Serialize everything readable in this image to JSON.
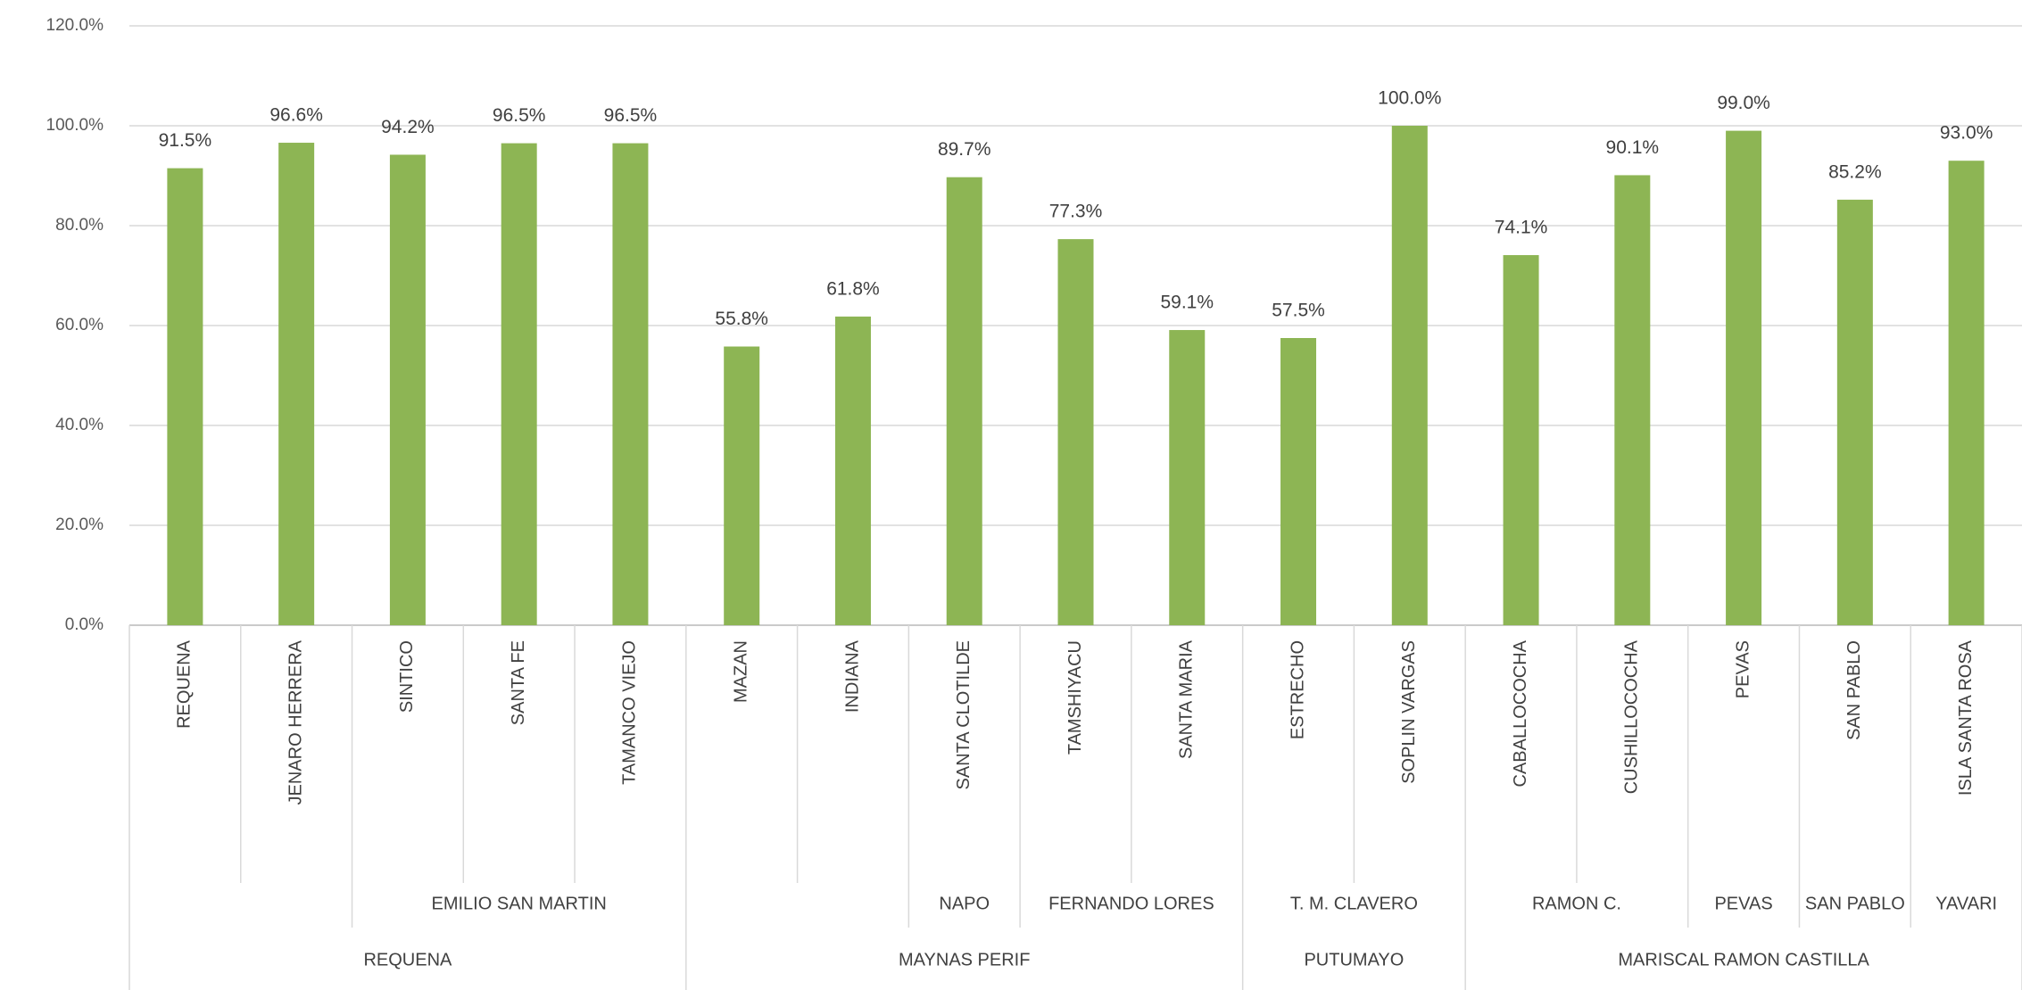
{
  "chart_data": {
    "type": "bar",
    "categories": [
      "REQUENA",
      "JENARO HERRERA",
      "SINTICO",
      "SANTA FE",
      "TAMANCO VIEJO",
      "MAZAN",
      "INDIANA",
      "SANTA CLOTILDE",
      "TAMSHIYACU",
      "SANTA MARIA",
      "ESTRECHO",
      "SOPLIN VARGAS",
      "CABALLOCOCHA",
      "CUSHILLOCOCHA",
      "PEVAS",
      "SAN PABLO",
      "ISLA SANTA ROSA"
    ],
    "values": [
      91.5,
      96.6,
      94.2,
      96.5,
      96.5,
      55.8,
      61.8,
      89.7,
      77.3,
      59.1,
      57.5,
      100.0,
      74.1,
      90.1,
      99.0,
      85.2,
      93.0
    ],
    "value_labels": [
      "91.5%",
      "96.6%",
      "94.2%",
      "96.5%",
      "96.5%",
      "55.8%",
      "61.8%",
      "89.7%",
      "77.3%",
      "59.1%",
      "57.5%",
      "100.0%",
      "74.1%",
      "90.1%",
      "99.0%",
      "85.2%",
      "93.0%"
    ],
    "color": "#8db554",
    "ylim": [
      0,
      120
    ],
    "yticks": [
      {
        "value": 0,
        "label": "0.0%"
      },
      {
        "value": 20,
        "label": "20.0%"
      },
      {
        "value": 40,
        "label": "40.0%"
      },
      {
        "value": 60,
        "label": "60.0%"
      },
      {
        "value": 80,
        "label": "80.0%"
      },
      {
        "value": 100,
        "label": "100.0%"
      },
      {
        "value": 120,
        "label": "120.0%"
      }
    ],
    "grid": true,
    "group_levels": [
      [
        {
          "label": null,
          "span": 2
        },
        {
          "label": "EMILIO SAN MARTIN",
          "span": 3
        },
        {
          "label": null,
          "span": 2
        },
        {
          "label": "NAPO",
          "span": 1
        },
        {
          "label": "FERNANDO LORES",
          "span": 2
        },
        {
          "label": "T. M. CLAVERO",
          "span": 2
        },
        {
          "label": "RAMON C.",
          "span": 2
        },
        {
          "label": "PEVAS",
          "span": 1
        },
        {
          "label": "SAN PABLO",
          "span": 1
        },
        {
          "label": "YAVARI",
          "span": 1
        }
      ],
      [
        {
          "label": "REQUENA",
          "span": 5
        },
        {
          "label": "MAYNAS PERIF",
          "span": 5
        },
        {
          "label": "PUTUMAYO",
          "span": 2
        },
        {
          "label": "MARISCAL RAMON CASTILLA",
          "span": 5
        }
      ]
    ]
  }
}
